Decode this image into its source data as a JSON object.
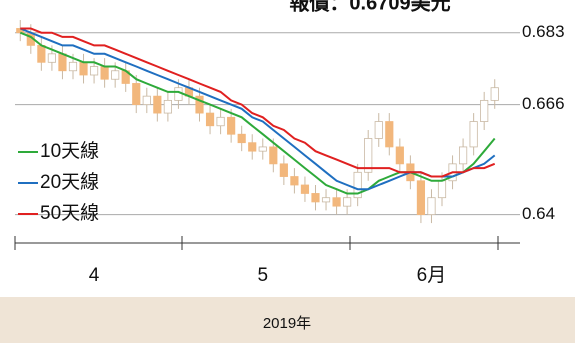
{
  "chart_data": {
    "type": "candlestick",
    "title": "報價：0.6709美元",
    "footer": "2019年",
    "categories": [
      null,
      null,
      null,
      null,
      null,
      null,
      null,
      "4",
      null,
      null,
      null,
      null,
      null,
      null,
      null,
      null,
      null,
      null,
      null,
      null,
      null,
      null,
      null,
      "5",
      null,
      null,
      null,
      null,
      null,
      null,
      null,
      null,
      null,
      null,
      null,
      null,
      null,
      null,
      null,
      "6月",
      null,
      null,
      null,
      null,
      null,
      null
    ],
    "open": [
      0.684,
      0.683,
      0.68,
      0.676,
      0.678,
      0.674,
      0.676,
      0.673,
      0.675,
      0.672,
      0.674,
      0.671,
      0.666,
      0.668,
      0.664,
      0.667,
      0.67,
      0.668,
      0.664,
      0.661,
      0.663,
      0.659,
      0.657,
      0.655,
      0.656,
      0.652,
      0.649,
      0.647,
      0.645,
      0.643,
      0.644,
      0.642,
      0.644,
      0.65,
      0.658,
      0.662,
      0.656,
      0.652,
      0.648,
      0.64,
      0.644,
      0.648,
      0.652,
      0.656,
      0.662,
      0.667
    ],
    "high": [
      0.686,
      0.685,
      0.682,
      0.68,
      0.68,
      0.678,
      0.678,
      0.677,
      0.677,
      0.676,
      0.676,
      0.673,
      0.67,
      0.67,
      0.669,
      0.672,
      0.672,
      0.67,
      0.666,
      0.665,
      0.665,
      0.661,
      0.659,
      0.658,
      0.658,
      0.654,
      0.651,
      0.649,
      0.647,
      0.646,
      0.646,
      0.646,
      0.652,
      0.66,
      0.664,
      0.664,
      0.658,
      0.654,
      0.65,
      0.646,
      0.65,
      0.654,
      0.658,
      0.664,
      0.669,
      0.672
    ],
    "low": [
      0.681,
      0.678,
      0.674,
      0.674,
      0.672,
      0.672,
      0.671,
      0.671,
      0.67,
      0.67,
      0.669,
      0.664,
      0.664,
      0.662,
      0.662,
      0.665,
      0.666,
      0.662,
      0.659,
      0.659,
      0.657,
      0.655,
      0.653,
      0.653,
      0.65,
      0.647,
      0.645,
      0.643,
      0.641,
      0.641,
      0.64,
      0.64,
      0.642,
      0.648,
      0.656,
      0.654,
      0.65,
      0.646,
      0.638,
      0.638,
      0.642,
      0.646,
      0.65,
      0.654,
      0.66,
      0.665
    ],
    "close": [
      0.683,
      0.68,
      0.676,
      0.678,
      0.674,
      0.676,
      0.673,
      0.675,
      0.672,
      0.674,
      0.671,
      0.666,
      0.668,
      0.664,
      0.667,
      0.67,
      0.668,
      0.664,
      0.661,
      0.663,
      0.659,
      0.657,
      0.655,
      0.656,
      0.652,
      0.649,
      0.647,
      0.645,
      0.643,
      0.644,
      0.642,
      0.644,
      0.65,
      0.658,
      0.662,
      0.656,
      0.652,
      0.648,
      0.64,
      0.644,
      0.648,
      0.652,
      0.656,
      0.662,
      0.667,
      0.67
    ],
    "up_color": "#ffffff",
    "down_color": "#f2b77c",
    "series": [
      {
        "name": "10天線",
        "color": "#2eaa3a",
        "values": [
          0.683,
          0.682,
          0.68,
          0.679,
          0.678,
          0.677,
          0.676,
          0.676,
          0.675,
          0.675,
          0.674,
          0.672,
          0.671,
          0.67,
          0.669,
          0.669,
          0.668,
          0.667,
          0.666,
          0.665,
          0.664,
          0.663,
          0.661,
          0.659,
          0.657,
          0.655,
          0.653,
          0.651,
          0.649,
          0.647,
          0.646,
          0.645,
          0.645,
          0.646,
          0.648,
          0.649,
          0.65,
          0.65,
          0.649,
          0.648,
          0.648,
          0.649,
          0.65,
          0.652,
          0.655,
          0.658
        ]
      },
      {
        "name": "20天線",
        "color": "#1f6fc0",
        "values": [
          0.684,
          0.683,
          0.682,
          0.681,
          0.68,
          0.68,
          0.679,
          0.678,
          0.678,
          0.677,
          0.676,
          0.675,
          0.674,
          0.673,
          0.672,
          0.671,
          0.67,
          0.669,
          0.668,
          0.667,
          0.666,
          0.665,
          0.663,
          0.662,
          0.66,
          0.658,
          0.656,
          0.654,
          0.652,
          0.65,
          0.648,
          0.647,
          0.646,
          0.646,
          0.647,
          0.648,
          0.649,
          0.65,
          0.65,
          0.649,
          0.649,
          0.649,
          0.65,
          0.651,
          0.652,
          0.654
        ]
      },
      {
        "name": "50天線",
        "color": "#e02020",
        "values": [
          0.684,
          0.684,
          0.683,
          0.683,
          0.682,
          0.682,
          0.681,
          0.68,
          0.68,
          0.679,
          0.678,
          0.677,
          0.676,
          0.675,
          0.674,
          0.673,
          0.672,
          0.671,
          0.67,
          0.669,
          0.667,
          0.666,
          0.664,
          0.663,
          0.661,
          0.66,
          0.658,
          0.657,
          0.655,
          0.654,
          0.653,
          0.652,
          0.651,
          0.651,
          0.651,
          0.651,
          0.65,
          0.65,
          0.65,
          0.649,
          0.649,
          0.65,
          0.65,
          0.651,
          0.651,
          0.652
        ]
      }
    ],
    "ylim": [
      0.634,
      0.686
    ],
    "yticks": [
      0.683,
      0.666,
      0.64
    ],
    "grid": true
  }
}
